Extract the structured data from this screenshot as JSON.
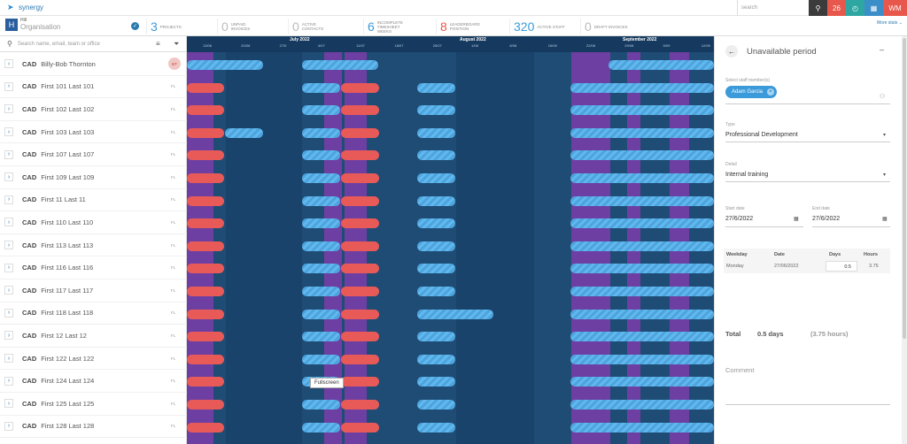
{
  "app": {
    "logo": "synergy"
  },
  "topbar": {
    "search_placeholder": "search",
    "buttons": [
      {
        "icon": "search-icon",
        "color": "#3b3b3b",
        "glyph": "⚲"
      },
      {
        "icon": "calendar-badge-icon",
        "color": "#e8574b",
        "glyph": "26"
      },
      {
        "icon": "timer-icon",
        "color": "#2ea7a2",
        "glyph": "◴"
      },
      {
        "icon": "calendar-icon",
        "color": "#3b8ec8",
        "glyph": "▦"
      },
      {
        "icon": "avatar",
        "color": "#e8574b",
        "glyph": "WM"
      }
    ]
  },
  "org": {
    "badge": "H",
    "small": "Hill",
    "name": "Organisation"
  },
  "stats": [
    {
      "num": "3",
      "label": "PROJECTS",
      "color": "#3b9ad9"
    },
    {
      "num": "0",
      "label": "UNPAID INVOICES",
      "color": "#bbbbbb"
    },
    {
      "num": "0",
      "label": "ACTIVE CONTACTS",
      "color": "#bbbbbb"
    },
    {
      "num": "6",
      "label": "INCOMPLETE TIMESHEET WEEKS",
      "color": "#3b9ad9"
    },
    {
      "num": "8",
      "label": "LEADERBOARD POSITION",
      "color": "#e8574b"
    },
    {
      "num": "320",
      "label": "ACTIVE STAFF",
      "color": "#3b9ad9"
    },
    {
      "num": "0",
      "label": "DRAFT INVOICES",
      "color": "#bbbbbb"
    }
  ],
  "more_stats": "More stats",
  "left": {
    "search_placeholder": "Search name, email, team or office"
  },
  "staff": [
    {
      "code": "CAD",
      "name": "Billy-Bob Thornton",
      "tag": "BT"
    },
    {
      "code": "CAD",
      "name": "First 101 Last 101",
      "tag": "FL"
    },
    {
      "code": "CAD",
      "name": "First 102 Last 102",
      "tag": "FL"
    },
    {
      "code": "CAD",
      "name": "First 103 Last 103",
      "tag": "FL"
    },
    {
      "code": "CAD",
      "name": "First 107 Last 107",
      "tag": "FL"
    },
    {
      "code": "CAD",
      "name": "First 109 Last 109",
      "tag": "FL"
    },
    {
      "code": "CAD",
      "name": "First 11 Last 11",
      "tag": "FL"
    },
    {
      "code": "CAD",
      "name": "First 110 Last 110",
      "tag": "FL"
    },
    {
      "code": "CAD",
      "name": "First 113 Last 113",
      "tag": "FL"
    },
    {
      "code": "CAD",
      "name": "First 116 Last 116",
      "tag": "FL"
    },
    {
      "code": "CAD",
      "name": "First 117 Last 117",
      "tag": "FL"
    },
    {
      "code": "CAD",
      "name": "First 118 Last 118",
      "tag": "FL"
    },
    {
      "code": "CAD",
      "name": "First 12 Last 12",
      "tag": "FL"
    },
    {
      "code": "CAD",
      "name": "First 122 Last 122",
      "tag": "FL"
    },
    {
      "code": "CAD",
      "name": "First 124 Last 124",
      "tag": "FL"
    },
    {
      "code": "CAD",
      "name": "First 125 Last 125",
      "tag": "FL"
    },
    {
      "code": "CAD",
      "name": "First 128 Last 128",
      "tag": "FL"
    }
  ],
  "timeline": {
    "months": [
      {
        "label": "July 2022"
      },
      {
        "label": "August 2022"
      },
      {
        "label": "September 2022"
      }
    ],
    "weeks": [
      "13/06",
      "20/06",
      "27/0",
      "4/07",
      "11/07",
      "18/07",
      "25/07",
      "1/08",
      "8/08",
      "15/08",
      "22/08",
      "29/08",
      "5/09",
      "12/09"
    ],
    "tooltip": "Fullscreen"
  },
  "panel": {
    "title": "Unavailable period",
    "staff_label": "Select staff member(s)",
    "chip": "Adam Garcia",
    "type_label": "Type",
    "type_value": "Professional Development",
    "detail_label": "Detail",
    "detail_value": "Internal training",
    "start_label": "Start date",
    "start_value": "27/6/2022",
    "end_label": "End date",
    "end_value": "27/6/2022",
    "headers": {
      "weekday": "Weekday",
      "date": "Date",
      "days": "Days",
      "hours": "Hours"
    },
    "row": {
      "weekday": "Monday",
      "date": "27/06/2022",
      "days": "0.5",
      "hours": "3.75"
    },
    "total_label": "Total",
    "total_days": "0.5 days",
    "total_hours": "(3.75 hours)",
    "comment_label": "Comment"
  }
}
